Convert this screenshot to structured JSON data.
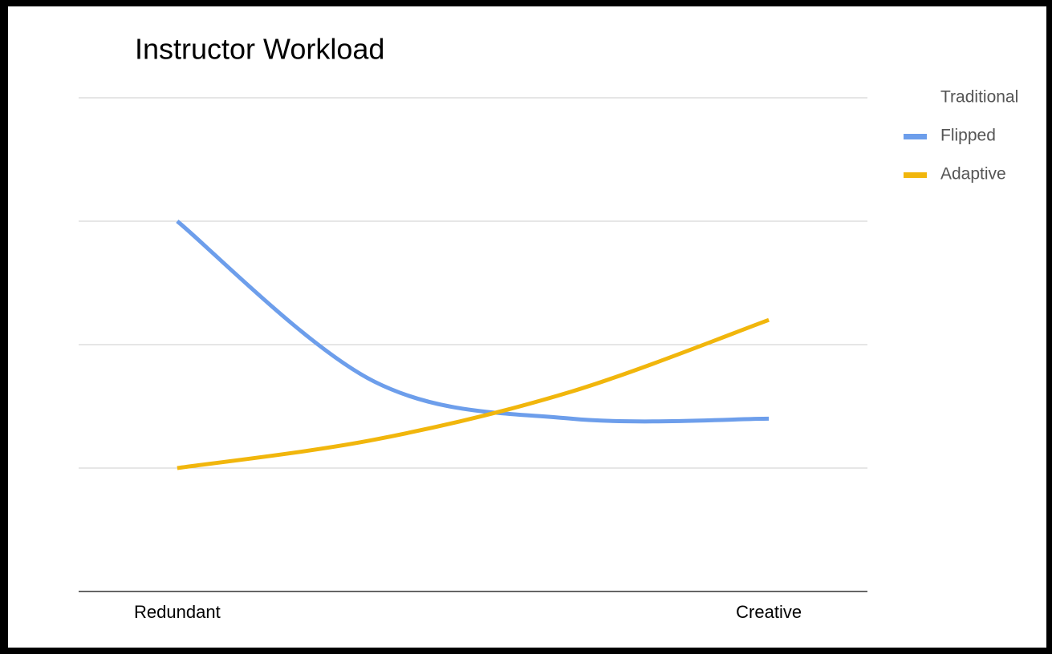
{
  "chart_data": {
    "type": "line",
    "title": "Instructor Workload",
    "categories": [
      "Redundant",
      null,
      null,
      "Creative"
    ],
    "series": [
      {
        "name": "Traditional",
        "color": "#ffffff",
        "values": [
          null,
          null,
          null,
          null
        ]
      },
      {
        "name": "Flipped",
        "color": "#6d9eeb",
        "values": [
          3,
          1.7,
          1.4,
          1.4
        ]
      },
      {
        "name": "Adaptive",
        "color": "#f1b60c",
        "values": [
          1,
          1.23,
          1.62,
          2.2
        ]
      }
    ],
    "ylim": [
      0,
      4
    ],
    "yticks": [
      0,
      1,
      2,
      3,
      4
    ],
    "show_ytick_labels": false,
    "grid": true,
    "smooth": true,
    "legend": "right"
  }
}
